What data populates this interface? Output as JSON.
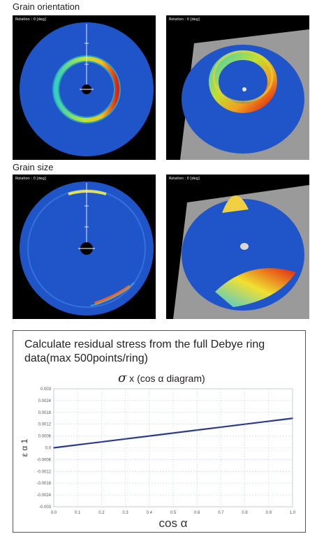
{
  "sections": {
    "grain_orientation": "Grain orientation",
    "grain_size": "Grain size"
  },
  "panels": {
    "rotation_label": "Rotation : 0 [deg]"
  },
  "stress": {
    "description": "Calculate residual stress from the full Debye ring data(max 500points/ring)",
    "chart_title_symbol": "σ",
    "chart_title_rest": " x (cos α diagram)"
  },
  "colors": {
    "plate_blue": "#1f55c8",
    "panel_bg": "#000000",
    "plane_gray": "#9a9a9a",
    "line_blue": "#2a3a8c"
  },
  "chart_data": {
    "type": "line",
    "title": "σ x (cos α diagram)",
    "xlabel": "cos α",
    "ylabel": "ε α 1",
    "xlim": [
      0,
      1
    ],
    "ylim": [
      -0.003,
      0.003
    ],
    "x_ticks": [
      "0.0",
      "0.1",
      "0.2",
      "0.3",
      "0.4",
      "0.5",
      "0.6",
      "0.7",
      "0.8",
      "0.9",
      "1.0"
    ],
    "y_ticks": [
      "0.003",
      "0.0024",
      "0.0018",
      "0.0012",
      "0.0006",
      "0.0",
      "-0.0006",
      "-0.0012",
      "-0.0018",
      "-0.0024",
      "-0.003"
    ],
    "grid": true,
    "series": [
      {
        "x": [
          0.0,
          0.1,
          0.2,
          0.3,
          0.4,
          0.5,
          0.6,
          0.7,
          0.8,
          0.9,
          1.0
        ],
        "y": [
          0.0,
          0.00015,
          0.0003,
          0.00045,
          0.0006,
          0.00075,
          0.0009,
          0.00105,
          0.0012,
          0.00135,
          0.0015
        ]
      }
    ]
  }
}
